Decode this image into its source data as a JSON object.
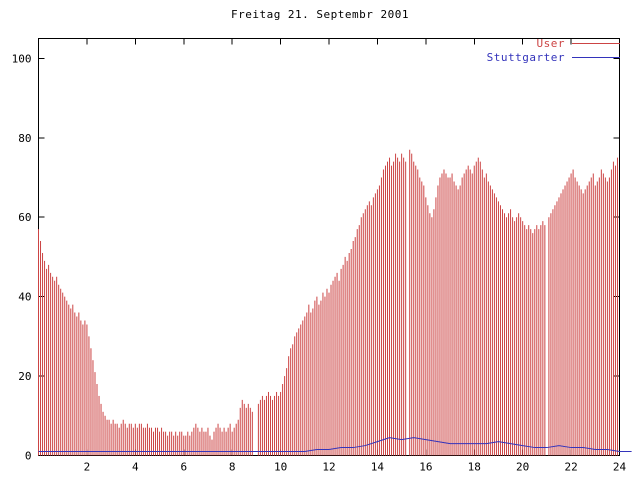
{
  "window": {
    "title": "Freitag 21. Septembr 2001"
  },
  "colors": {
    "background": "#ffffff",
    "border": "#000000",
    "text": "#000000",
    "user": "#cc4444",
    "stuttgarter": "#3333bb"
  },
  "chart_data": {
    "type": "bar",
    "title": "Freitag 21. Septembr 2001",
    "xlabel": "",
    "ylabel": "",
    "xlim": [
      0,
      24
    ],
    "ylim": [
      0,
      105
    ],
    "xticks": [
      2,
      4,
      6,
      8,
      10,
      12,
      14,
      16,
      18,
      20,
      22,
      24
    ],
    "yticks": [
      0,
      20,
      40,
      60,
      80,
      100
    ],
    "grid": false,
    "legend_position": "top-right",
    "series": [
      {
        "name": "User",
        "style": "impulses",
        "color": "#cc4444",
        "x_start": 0,
        "x_step": 0.0833333,
        "values": [
          57,
          54,
          51,
          49,
          47,
          48,
          46,
          45,
          44,
          45,
          43,
          42,
          41,
          40,
          39,
          38,
          37,
          38,
          36,
          35,
          36,
          34,
          33,
          34,
          33,
          30,
          27,
          24,
          21,
          18,
          15,
          13,
          11,
          10,
          9,
          9,
          8,
          9,
          8,
          8,
          7,
          8,
          9,
          8,
          7,
          8,
          8,
          7,
          8,
          7,
          8,
          8,
          7,
          7,
          8,
          7,
          7,
          6,
          7,
          7,
          6,
          7,
          6,
          6,
          5,
          6,
          6,
          5,
          6,
          5,
          6,
          6,
          5,
          5,
          6,
          5,
          6,
          7,
          8,
          7,
          6,
          7,
          6,
          6,
          7,
          5,
          4,
          6,
          7,
          8,
          7,
          6,
          7,
          6,
          7,
          8,
          6,
          7,
          8,
          9,
          12,
          14,
          13,
          12,
          13,
          12,
          11,
          0,
          0,
          13,
          14,
          15,
          14,
          15,
          16,
          15,
          14,
          15,
          16,
          15,
          16,
          18,
          20,
          22,
          25,
          27,
          28,
          30,
          31,
          32,
          33,
          34,
          35,
          36,
          38,
          36,
          37,
          39,
          40,
          38,
          39,
          41,
          40,
          42,
          41,
          43,
          44,
          45,
          46,
          44,
          47,
          48,
          50,
          49,
          51,
          52,
          54,
          55,
          57,
          58,
          60,
          61,
          62,
          63,
          64,
          63,
          65,
          66,
          67,
          68,
          70,
          72,
          73,
          74,
          75,
          73,
          74,
          76,
          75,
          74,
          76,
          75,
          74,
          0,
          77,
          76,
          74,
          73,
          72,
          70,
          69,
          68,
          65,
          63,
          61,
          60,
          62,
          65,
          68,
          70,
          71,
          72,
          71,
          70,
          70,
          71,
          69,
          68,
          67,
          68,
          70,
          71,
          72,
          73,
          72,
          71,
          73,
          74,
          75,
          74,
          72,
          70,
          71,
          69,
          68,
          67,
          66,
          65,
          64,
          63,
          62,
          61,
          60,
          61,
          62,
          60,
          59,
          60,
          61,
          60,
          59,
          58,
          57,
          58,
          57,
          56,
          57,
          58,
          57,
          58,
          59,
          58,
          0,
          60,
          61,
          62,
          63,
          64,
          65,
          66,
          67,
          68,
          69,
          70,
          71,
          72,
          70,
          69,
          68,
          67,
          66,
          67,
          68,
          69,
          70,
          71,
          68,
          69,
          70,
          72,
          71,
          70,
          69,
          70,
          72,
          74,
          73,
          75
        ]
      },
      {
        "name": "Stuttgarter",
        "style": "line",
        "color": "#3333bb",
        "x_start": 0,
        "x_step": 0.5,
        "values": [
          1,
          1,
          1,
          1,
          1,
          1,
          1,
          1,
          1,
          1,
          1,
          1,
          1,
          1,
          1,
          1,
          1,
          1,
          1,
          1,
          1,
          1,
          1,
          1.5,
          1.5,
          2,
          2,
          2.5,
          3.5,
          4.5,
          4,
          4.5,
          4,
          3.5,
          3,
          3,
          3,
          3,
          3.5,
          3,
          2.5,
          2,
          2,
          2.5,
          2,
          2,
          1.5,
          1.5,
          1,
          1
        ]
      }
    ]
  }
}
